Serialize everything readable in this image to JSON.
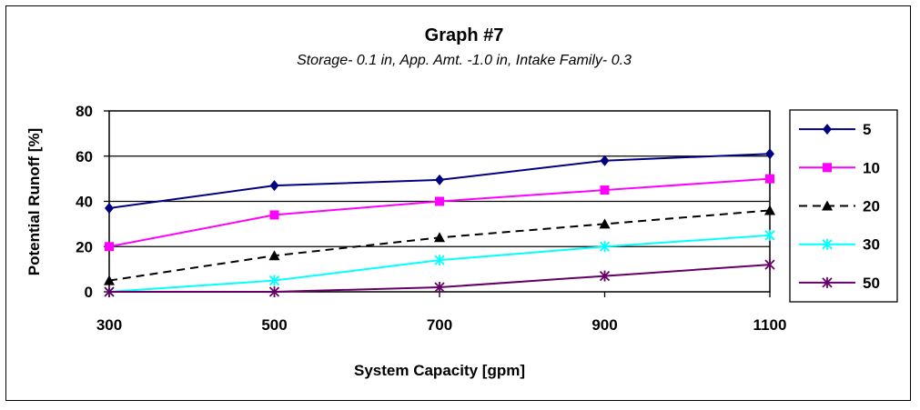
{
  "chart_data": {
    "type": "line",
    "title": "Graph #7",
    "subtitle": "Storage- 0.1 in, App. Amt. -1.0 in, Intake Family- 0.3",
    "xlabel": "System Capacity [gpm]",
    "ylabel": "Potential Runoff [%]",
    "x": [
      300,
      500,
      700,
      900,
      1100
    ],
    "xlim": [
      300,
      1100
    ],
    "ylim": [
      0,
      80
    ],
    "yticks": [
      0,
      20,
      40,
      60,
      80
    ],
    "grid": "horizontal",
    "legend": "right",
    "series": [
      {
        "name": "5",
        "values": [
          37,
          47,
          49.5,
          58,
          61
        ],
        "color": "#000080",
        "dash": false,
        "marker": "diamond"
      },
      {
        "name": "10",
        "values": [
          20,
          34,
          40,
          45,
          50
        ],
        "color": "#ff00ff",
        "dash": false,
        "marker": "square"
      },
      {
        "name": "20",
        "values": [
          5,
          16,
          24,
          30,
          36
        ],
        "color": "#000000",
        "dash": true,
        "marker": "triangle"
      },
      {
        "name": "30",
        "values": [
          0,
          5,
          14,
          20,
          25
        ],
        "color": "#00ffff",
        "dash": false,
        "marker": "star"
      },
      {
        "name": "50",
        "values": [
          0,
          0,
          2,
          7,
          12
        ],
        "color": "#660066",
        "dash": false,
        "marker": "star"
      }
    ]
  }
}
